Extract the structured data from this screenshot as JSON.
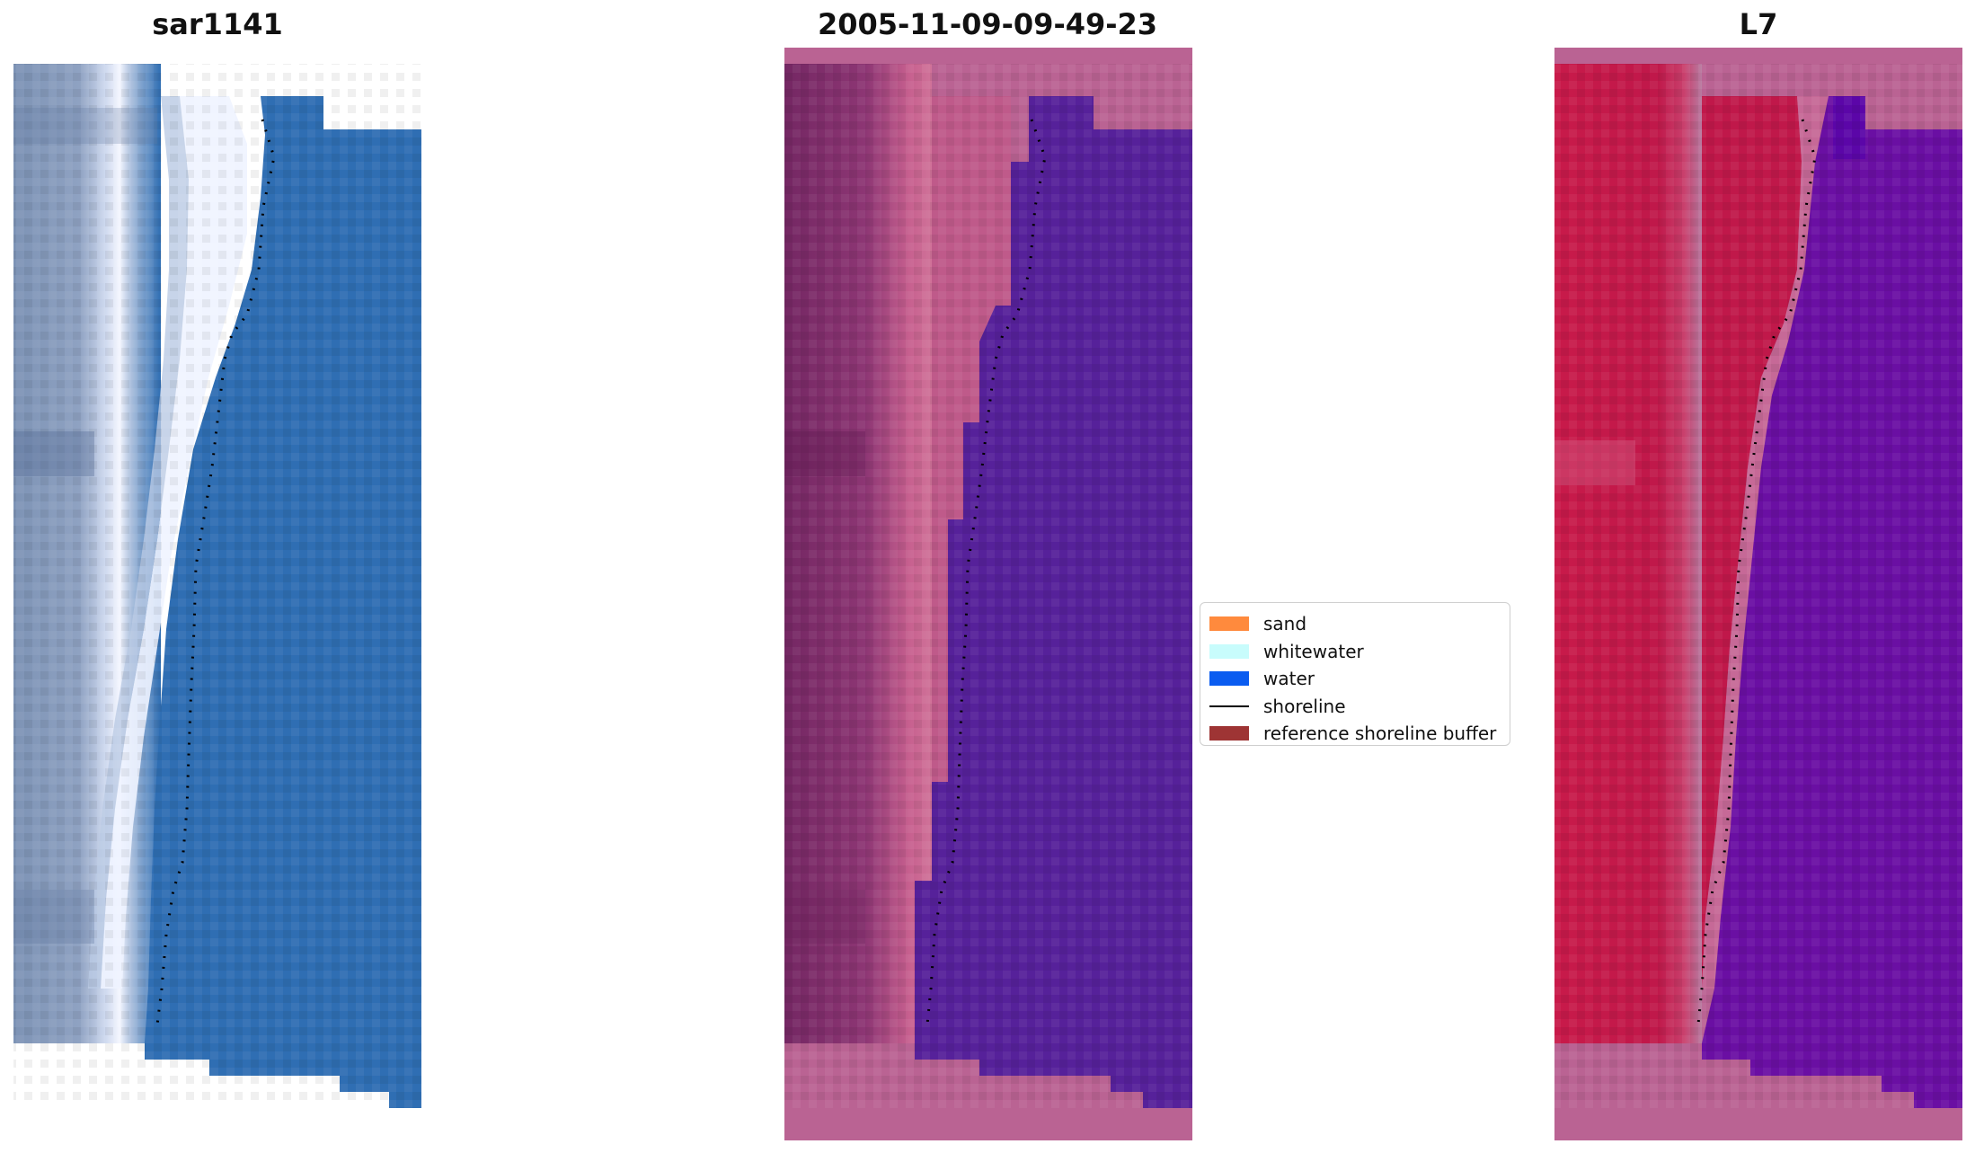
{
  "panels": {
    "left_title": "sar1141",
    "center_title": "2005-11-09-09-49-23",
    "right_title": "L7"
  },
  "legend": {
    "items": [
      {
        "label": "sand",
        "color": "#ff8a3d",
        "kind": "patch"
      },
      {
        "label": "whitewater",
        "color": "#c8fcfc",
        "kind": "patch"
      },
      {
        "label": "water",
        "color": "#0a5cf0",
        "kind": "patch"
      },
      {
        "label": "shoreline",
        "color": "#000000",
        "kind": "line"
      },
      {
        "label": "reference shoreline buffer",
        "color": "#9e3434",
        "kind": "patch"
      }
    ]
  },
  "colors": {
    "rgb_land": "#7d93b5",
    "rgb_whitewater": "#f2f6ff",
    "rgb_water": "#2f6eb3",
    "classified_land": "#7d2a66",
    "classified_sand": "#c7608f",
    "classified_water": "#56219a",
    "classified_nodata": "#ba6393",
    "nir_land": "#c01a4a",
    "nir_water": "#6a0fa3",
    "nir_nodata": "#ba6393"
  }
}
